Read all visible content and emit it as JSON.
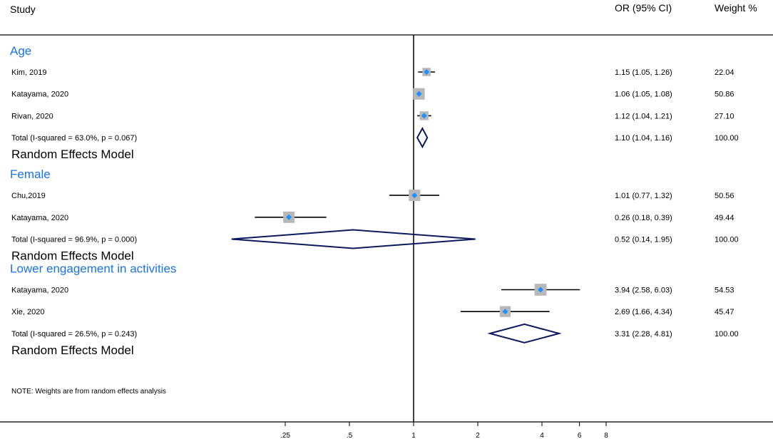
{
  "header": {
    "study": "Study",
    "or": "OR (95% CI)",
    "weight": "Weight %"
  },
  "note": "NOTE: Weights are from random effects analysis",
  "chart_data": {
    "type": "forest",
    "x_scale": "log",
    "xlim": [
      0.125,
      8
    ],
    "reference_line": 1,
    "x_ticks": [
      {
        "value": 0.25,
        "label": ".25"
      },
      {
        "value": 0.5,
        "label": ".5"
      },
      {
        "value": 1,
        "label": "1"
      },
      {
        "value": 2,
        "label": "2"
      },
      {
        "value": 4,
        "label": "4"
      },
      {
        "value": 6,
        "label": "6"
      },
      {
        "value": 8,
        "label": "8"
      }
    ],
    "groups": [
      {
        "name": "Age",
        "studies": [
          {
            "label": "Kim, 2019",
            "or": 1.15,
            "lo": 1.05,
            "hi": 1.26,
            "ci_text": "1.15 (1.05, 1.26)",
            "weight": 22.04,
            "weight_text": "22.04"
          },
          {
            "label": "Katayama, 2020",
            "or": 1.06,
            "lo": 1.05,
            "hi": 1.08,
            "ci_text": "1.06 (1.05, 1.08)",
            "weight": 50.86,
            "weight_text": "50.86"
          },
          {
            "label": "Rivan, 2020",
            "or": 1.12,
            "lo": 1.04,
            "hi": 1.21,
            "ci_text": "1.12 (1.04, 1.21)",
            "weight": 27.1,
            "weight_text": "27.10"
          }
        ],
        "total": {
          "label": "Total (I-squared = 63.0%, p = 0.067)",
          "or": 1.1,
          "lo": 1.04,
          "hi": 1.16,
          "ci_text": "1.10 (1.04, 1.16)",
          "weight_text": "100.00"
        },
        "model": "Random Effects Model"
      },
      {
        "name": "Female",
        "studies": [
          {
            "label": "Chu,2019",
            "or": 1.01,
            "lo": 0.77,
            "hi": 1.32,
            "ci_text": "1.01 (0.77, 1.32)",
            "weight": 50.56,
            "weight_text": "50.56"
          },
          {
            "label": "Katayama, 2020",
            "or": 0.26,
            "lo": 0.18,
            "hi": 0.39,
            "ci_text": "0.26 (0.18, 0.39)",
            "weight": 49.44,
            "weight_text": "49.44"
          }
        ],
        "total": {
          "label": "Total (I-squared = 96.9%, p = 0.000)",
          "or": 0.52,
          "lo": 0.14,
          "hi": 1.95,
          "ci_text": "0.52 (0.14, 1.95)",
          "weight_text": "100.00"
        },
        "model": "Random Effects Model"
      },
      {
        "name": "Lower engagement in activities",
        "studies": [
          {
            "label": "Katayama, 2020",
            "or": 3.94,
            "lo": 2.58,
            "hi": 6.03,
            "ci_text": "3.94 (2.58, 6.03)",
            "weight": 54.53,
            "weight_text": "54.53"
          },
          {
            "label": "Xie, 2020",
            "or": 2.69,
            "lo": 1.66,
            "hi": 4.34,
            "ci_text": "2.69 (1.66, 4.34)",
            "weight": 45.47,
            "weight_text": "45.47"
          }
        ],
        "total": {
          "label": "Total (I-squared = 26.5%, p = 0.243)",
          "or": 3.31,
          "lo": 2.28,
          "hi": 4.81,
          "ci_text": "3.31 (2.28, 4.81)",
          "weight_text": "100.00"
        },
        "model": "Random Effects Model"
      }
    ],
    "colors": {
      "group_label": "#1a73e8",
      "point": "#1e90ff",
      "weight_box": "#b8b8b8",
      "diamond": "#0a1a5c",
      "line": "#000000"
    }
  }
}
